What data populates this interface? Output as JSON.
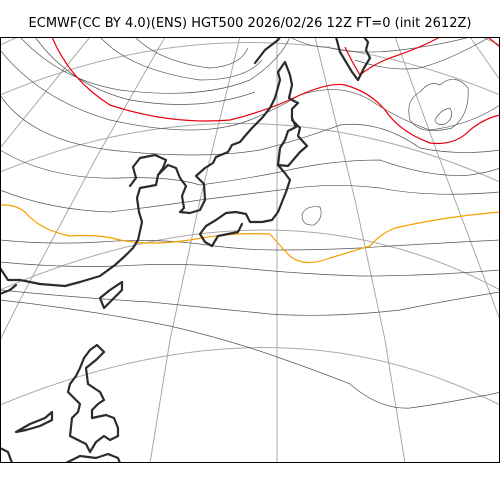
{
  "title": "ECMWF(CC BY 4.0)(ENS) HGT500 2026/02/26 12Z FT=0 (init 2612Z)",
  "map": {
    "model": "ECMWF",
    "license": "CC BY 4.0",
    "product": "ENS",
    "field": "HGT500",
    "valid_time": "2026/02/26 12Z",
    "forecast_time": "FT=0",
    "init": "init 2612Z"
  },
  "colors": {
    "background": "#ffffff",
    "coastline": "#2b2b2b",
    "graticule": "#a9a9a9",
    "contour": "#555555",
    "contour_highlight_1": "#e8000b",
    "contour_highlight_2": "#f5a000"
  },
  "icons": {
    "coastline": "coastline-line",
    "graticule": "lat-lon-grid",
    "contours": "geopotential-contour-lines"
  }
}
